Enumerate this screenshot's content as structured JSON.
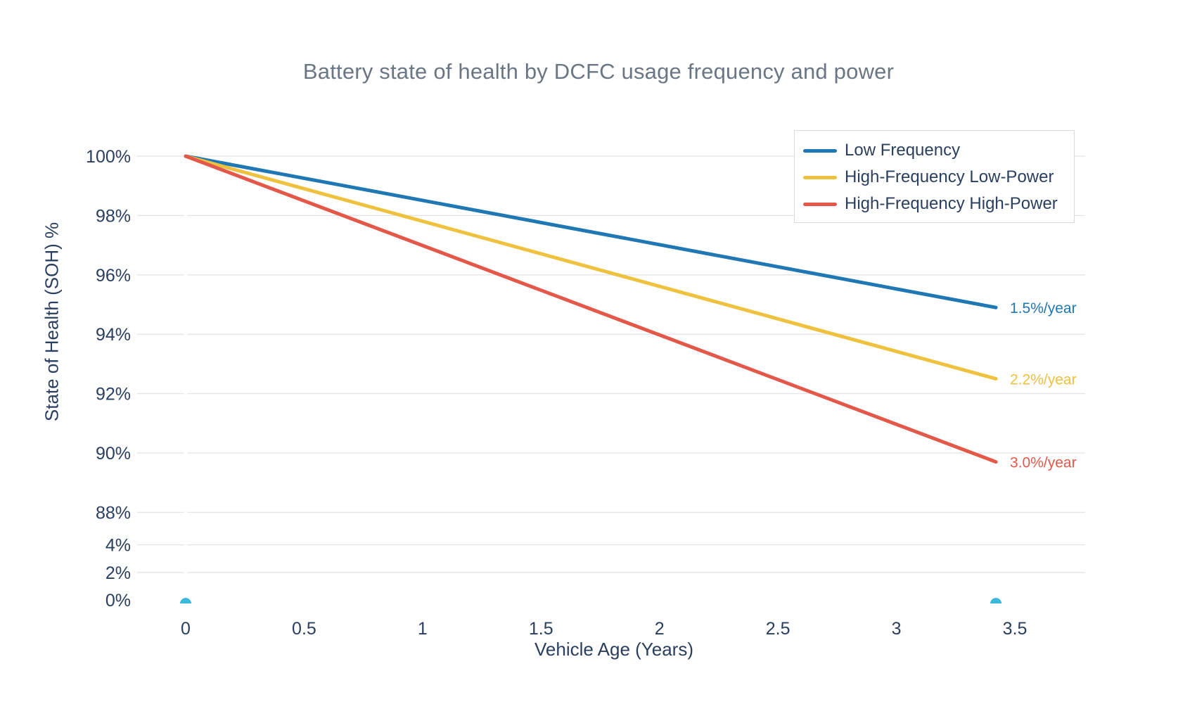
{
  "title": "Battery state of health by DCFC usage frequency and power",
  "chart_data": {
    "type": "line",
    "title": "Battery state of health by DCFC usage frequency and power",
    "xlabel": "Vehicle Age (Years)",
    "ylabel": "State of Health (SOH) %",
    "grid": true,
    "legend_position": "top-right-inside",
    "xlim": [
      -0.2,
      3.8
    ],
    "xticks": [
      {
        "value": 0,
        "label": "0"
      },
      {
        "value": 0.5,
        "label": "0.5"
      },
      {
        "value": 1,
        "label": "1"
      },
      {
        "value": 1.5,
        "label": "1.5"
      },
      {
        "value": 2,
        "label": "2"
      },
      {
        "value": 2.5,
        "label": "2.5"
      },
      {
        "value": 3,
        "label": "3"
      },
      {
        "value": 3.5,
        "label": "3.5"
      }
    ],
    "yticks": [
      {
        "value": 100,
        "label": "100%"
      },
      {
        "value": 98,
        "label": "98%"
      },
      {
        "value": 96,
        "label": "96%"
      },
      {
        "value": 94,
        "label": "94%"
      },
      {
        "value": 92,
        "label": "92%"
      },
      {
        "value": 90,
        "label": "90%"
      },
      {
        "value": 88,
        "label": "88%"
      },
      {
        "value": 4,
        "label": "4%"
      },
      {
        "value": 2,
        "label": "2%"
      },
      {
        "value": 0,
        "label": "0%"
      }
    ],
    "yaxis_break_between": [
      88,
      4
    ],
    "series": [
      {
        "name": "Low Frequency",
        "color": "#1f77b4",
        "x": [
          0,
          3.42
        ],
        "values": [
          100,
          94.9
        ],
        "annotation": "1.5%/year"
      },
      {
        "name": "High-Frequency Low-Power",
        "color": "#eec13f",
        "x": [
          0,
          3.42
        ],
        "values": [
          100,
          92.5
        ],
        "annotation": "2.2%/year"
      },
      {
        "name": "High-Frequency High-Power",
        "color": "#e4584a",
        "x": [
          0,
          3.42
        ],
        "values": [
          100,
          89.7
        ],
        "annotation": "3.0%/year"
      }
    ],
    "markers": {
      "color": "#3cb8df",
      "x": [
        0,
        3.42
      ],
      "value": 0
    },
    "colors": {
      "grid": "#e4e4e4",
      "text": "#2a3f5f",
      "title": "#6b7684",
      "background": "#ffffff",
      "legend_border": "#d9d9d9",
      "zeroline": "#ffffff"
    }
  }
}
